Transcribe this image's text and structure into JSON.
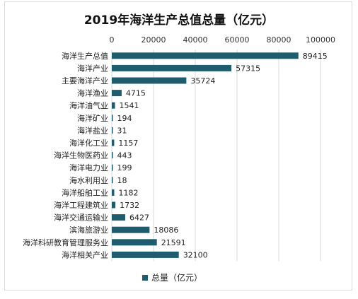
{
  "chart_data": {
    "type": "bar",
    "orientation": "horizontal",
    "title": "2019年海洋生产总值总量（亿元）",
    "categories": [
      "海洋生产总值",
      "海洋产业",
      "主要海洋产业",
      "海洋渔业",
      "海洋油气业",
      "海洋矿业",
      "海洋盐业",
      "海洋化工业",
      "海洋生物医药业",
      "海洋电力业",
      "海水利用业",
      "海洋船舶工业",
      "海洋工程建筑业",
      "海洋交通运输业",
      "滨海旅游业",
      "海洋科研教育管理服务业",
      "海洋相关产业"
    ],
    "series": [
      {
        "name": "总量（亿元）",
        "values": [
          89415,
          57315,
          35724,
          4715,
          1541,
          194,
          31,
          1157,
          443,
          199,
          18,
          1182,
          1732,
          6427,
          18086,
          21591,
          32100
        ]
      }
    ],
    "x_ticks": [
      "0",
      "20000",
      "40000",
      "60000",
      "80000",
      "100000"
    ],
    "xlim": [
      0,
      100000
    ],
    "grid": true,
    "legend_position": "bottom",
    "colors": {
      "bar": "#1f5c6e"
    }
  }
}
